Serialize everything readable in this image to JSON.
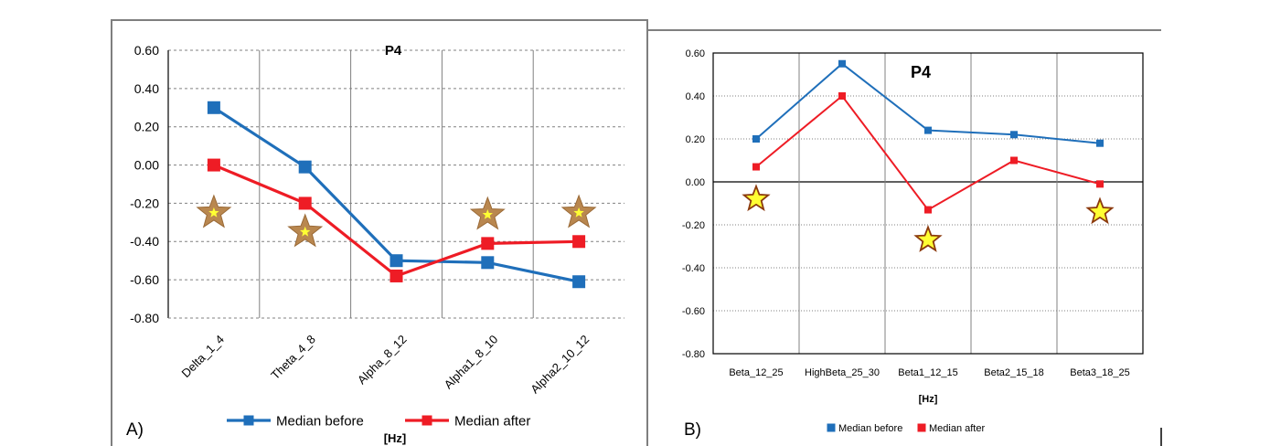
{
  "colors": {
    "before": "#1f6fba",
    "after": "#ee1c25",
    "star_a_fill": "#b9874f",
    "star_b_fill": "#ffff33",
    "star_b_stroke": "#8b3a0e",
    "frame": "#7f7f7f",
    "grid": "#808080"
  },
  "panel_labels": {
    "a": "A)",
    "b": "B)"
  },
  "chart_data": [
    {
      "type": "line",
      "title": "P4",
      "xlabel": "[Hz]",
      "ylabel": "",
      "categories": [
        "Delta_1_4",
        "Theta_4_8",
        "Alpha_8_12",
        "Alpha1_8_10",
        "Alpha2_10_12"
      ],
      "series": [
        {
          "name": "Median before",
          "values": [
            0.3,
            -0.01,
            -0.5,
            -0.51,
            -0.61
          ]
        },
        {
          "name": "Median after",
          "values": [
            0.0,
            -0.2,
            -0.58,
            -0.41,
            -0.4
          ]
        }
      ],
      "ylim": [
        -0.8,
        0.6
      ],
      "yticks": [
        0.6,
        0.4,
        0.2,
        0.0,
        -0.2,
        -0.4,
        -0.6,
        -0.8
      ],
      "ytick_labels": [
        "0.60",
        "0.40",
        "0.20",
        "0.00",
        "-0.20",
        "-0.40",
        "-0.60",
        "-0.80"
      ],
      "significance_markers": [
        {
          "category": "Delta_1_4",
          "y": -0.25
        },
        {
          "category": "Theta_4_8",
          "y": -0.35
        },
        {
          "category": "Alpha1_8_10",
          "y": -0.26
        },
        {
          "category": "Alpha2_10_12",
          "y": -0.25
        }
      ],
      "grid": "major y dashed, vertical category lines",
      "legend": "bottom"
    },
    {
      "type": "line",
      "title": "P4",
      "xlabel": "[Hz]",
      "ylabel": "",
      "categories": [
        "Beta_12_25",
        "HighBeta_25_30",
        "Beta1_12_15",
        "Beta2_15_18",
        "Beta3_18_25"
      ],
      "series": [
        {
          "name": "Median before",
          "values": [
            0.2,
            0.55,
            0.24,
            0.22,
            0.18
          ]
        },
        {
          "name": "Median after",
          "values": [
            0.07,
            0.4,
            -0.13,
            0.1,
            -0.01
          ]
        }
      ],
      "ylim": [
        -0.8,
        0.6
      ],
      "yticks": [
        0.6,
        0.4,
        0.2,
        0.0,
        -0.2,
        -0.4,
        -0.6,
        -0.8
      ],
      "ytick_labels": [
        "0.60",
        "0.40",
        "0.20",
        "0.00",
        "-0.20",
        "-0.40",
        "-0.60",
        "-0.80"
      ],
      "significance_markers": [
        {
          "category": "Beta_12_25",
          "y": -0.08
        },
        {
          "category": "Beta1_12_15",
          "y": -0.27
        },
        {
          "category": "Beta3_18_25",
          "y": -0.14
        }
      ],
      "grid": "major y dotted, vertical category lines",
      "legend": "bottom"
    }
  ]
}
